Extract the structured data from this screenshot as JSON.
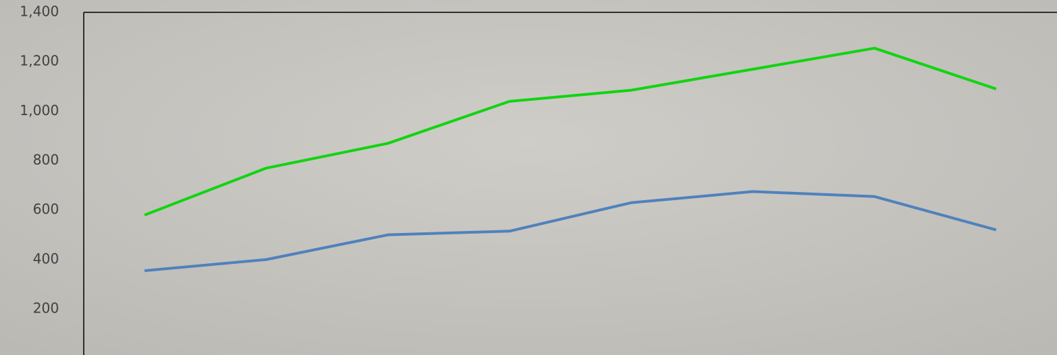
{
  "chart_data": {
    "type": "line",
    "categories": [
      null,
      null,
      null,
      null,
      null,
      null,
      null,
      null
    ],
    "series": [
      {
        "color": "#11d411",
        "values": [
          580,
          770,
          870,
          1040,
          1085,
          1170,
          1255,
          1090
        ]
      },
      {
        "color": "#4f81bd",
        "values": [
          355,
          400,
          500,
          515,
          630,
          675,
          655,
          520
        ]
      }
    ],
    "ylim": [
      14,
      1400
    ],
    "yticks": [
      200,
      400,
      600,
      800,
      {
        "value": 1000,
        "label": "1,000"
      },
      {
        "value": 1200,
        "label": "1,200"
      },
      {
        "value": 1400,
        "label": "1,400"
      }
    ]
  }
}
